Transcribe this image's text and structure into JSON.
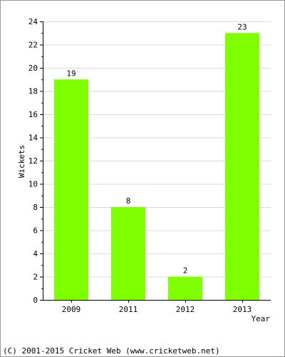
{
  "chart_data": {
    "type": "bar",
    "categories": [
      "2009",
      "2011",
      "2012",
      "2013"
    ],
    "values": [
      19,
      8,
      2,
      23
    ],
    "data_labels": [
      "19",
      "8",
      "2",
      "23"
    ],
    "title": "",
    "xlabel": "Year",
    "ylabel": "Wickets",
    "ylim": [
      0,
      24
    ],
    "yticks": [
      "0",
      "2",
      "4",
      "6",
      "8",
      "10",
      "12",
      "14",
      "16",
      "18",
      "20",
      "22",
      "24"
    ],
    "grid": true,
    "legend": "none",
    "colors": {
      "bar": "#80ff00",
      "grid": "#d9d9d9",
      "axis": "#000000"
    }
  },
  "footer": {
    "copyright": "(C) 2001-2015 Cricket Web (www.cricketweb.net)"
  }
}
